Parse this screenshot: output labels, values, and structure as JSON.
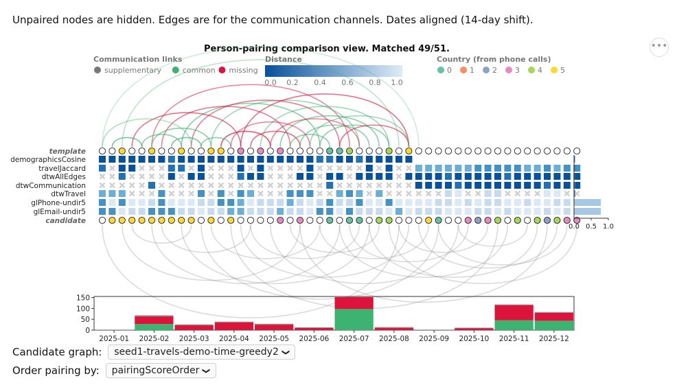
{
  "intro_text": "Unpaired nodes are hidden. Edges are for the communication channels. Dates aligned (14-day shift).",
  "more_icon": "ellipsis-icon",
  "chart_title": "Person-pairing comparison view. Matched 49/51.",
  "legends": {
    "links": {
      "title": "Communication links",
      "items": [
        {
          "label": "supplementary",
          "color": "#777777"
        },
        {
          "label": "common",
          "color": "#3cb371"
        },
        {
          "label": "missing",
          "color": "#dc143c"
        }
      ]
    },
    "distance": {
      "title": "Distance",
      "ticks": [
        "0.0",
        "0.2",
        "0.4",
        "0.6",
        "0.8",
        "1.0"
      ],
      "color_from": "#08519c",
      "color_to": "#deebf7"
    },
    "country": {
      "title": "Country (from phone calls)",
      "items": [
        {
          "label": "0",
          "color": "#66c2a5"
        },
        {
          "label": "1",
          "color": "#fc8d62"
        },
        {
          "label": "2",
          "color": "#8da0cb"
        },
        {
          "label": "3",
          "color": "#e78ac3"
        },
        {
          "label": "4",
          "color": "#a6d854"
        },
        {
          "label": "5",
          "color": "#ffd92f"
        }
      ]
    }
  },
  "matrix": {
    "row_labels": [
      "template",
      "demographicsCosine",
      "travelJaccard",
      "dtwAllEdges",
      "dtwCommunication",
      "dtwTravel",
      "glPhone-undir5",
      "glEmail-undir5",
      "candidate"
    ],
    "template_nodes": [
      "w",
      "w",
      "y",
      "w",
      "w",
      "y",
      "w",
      "w",
      "y",
      "w",
      "w",
      "y",
      "y",
      "w",
      "p",
      "w",
      "p",
      "w",
      "p",
      "w",
      "w",
      "w",
      "w",
      "g",
      "g",
      "l",
      "w",
      "w",
      "w",
      "l",
      "w",
      "y"
    ],
    "candidate_nodes": [
      "w",
      "y",
      "y",
      "y",
      "y",
      "y",
      "y",
      "y",
      "y",
      "y",
      "w",
      "y",
      "w",
      "y",
      "w",
      "w",
      "w",
      "w",
      "p",
      "w",
      "p",
      "w",
      "w",
      "g",
      "w",
      "g",
      "g",
      "w",
      "l",
      "l",
      "w",
      "w",
      "w",
      "y",
      "g",
      "w",
      "w",
      "p",
      "s",
      "p",
      "l",
      "w",
      "l",
      "w",
      "l",
      "s",
      "l",
      "p",
      "p"
    ],
    "row_bars": [
      0.02,
      0.02,
      0.02,
      0.04,
      0.01,
      0.78,
      0.78
    ],
    "bar_axis_ticks": [
      "0.0",
      "0.5",
      "1.0"
    ]
  },
  "chart_data": {
    "type": "bar",
    "categories": [
      "2025-01",
      "2025-02",
      "2025-03",
      "2025-04",
      "2025-05",
      "2025-06",
      "2025-07",
      "2025-08",
      "2025-09",
      "2025-10",
      "2025-11",
      "2025-12"
    ],
    "series": [
      {
        "name": "common",
        "values": [
          0,
          28,
          0,
          0,
          0,
          0,
          97,
          0,
          0,
          0,
          45,
          43
        ]
      },
      {
        "name": "missing",
        "values": [
          0,
          35,
          22,
          35,
          25,
          10,
          55,
          10,
          0,
          8,
          70,
          37
        ]
      },
      {
        "name": "supplementary",
        "values": [
          2,
          5,
          4,
          4,
          4,
          3,
          0,
          4,
          1,
          3,
          3,
          3
        ]
      }
    ],
    "yticks": [
      0,
      50,
      100,
      150
    ],
    "ylim": [
      0,
      155
    ]
  },
  "controls": {
    "candidate_label": "Candidate graph:",
    "candidate_value": "seed1-travels-demo-time-greedy2",
    "order_label": "Order pairing by:",
    "order_value": "pairingScoreOrder",
    "chevron_icon": "chevron-down-icon"
  }
}
